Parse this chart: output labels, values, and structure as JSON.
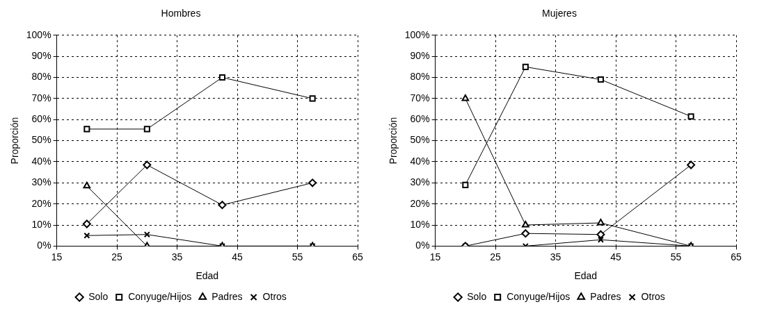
{
  "chart_data": [
    {
      "type": "line",
      "title": "Hombres",
      "xlabel": "Edad",
      "ylabel": "Proporción",
      "xlim": [
        15,
        65
      ],
      "xticks": [
        15,
        25,
        35,
        45,
        55,
        65
      ],
      "ylim": [
        0,
        100
      ],
      "yticks": [
        {
          "value": 0,
          "label": "0%"
        },
        {
          "value": 10,
          "label": "10%"
        },
        {
          "value": 20,
          "label": "20%"
        },
        {
          "value": 30,
          "label": "30%"
        },
        {
          "value": 40,
          "label": "40%"
        },
        {
          "value": 50,
          "label": "50%"
        },
        {
          "value": 60,
          "label": "60%"
        },
        {
          "value": 70,
          "label": "70%"
        },
        {
          "value": 80,
          "label": "80%"
        },
        {
          "value": 90,
          "label": "90%"
        },
        {
          "value": 100,
          "label": "100%"
        }
      ],
      "grid": true,
      "legend": "bottom",
      "series": [
        {
          "name": "Solo",
          "color": "#000000",
          "marker": "diamond",
          "x": [
            20,
            30,
            42.5,
            57.5
          ],
          "values": [
            10.5,
            38.5,
            19.5,
            30
          ]
        },
        {
          "name": "Conyuge/Hijos",
          "color": "#000000",
          "marker": "square",
          "x": [
            20,
            30,
            42.5,
            57.5
          ],
          "values": [
            55.5,
            55.5,
            80,
            70
          ]
        },
        {
          "name": "Padres",
          "color": "#000000",
          "marker": "triangle",
          "x": [
            20,
            30,
            42.5,
            57.5
          ],
          "values": [
            28.5,
            0,
            0,
            0
          ]
        },
        {
          "name": "Otros",
          "color": "#000000",
          "marker": "cross",
          "x": [
            20,
            30,
            42.5,
            57.5
          ],
          "values": [
            5,
            5.5,
            0,
            0
          ]
        }
      ]
    },
    {
      "type": "line",
      "title": "Mujeres",
      "xlabel": "Edad",
      "ylabel": "Proporción",
      "xlim": [
        15,
        65
      ],
      "xticks": [
        15,
        25,
        35,
        45,
        55,
        65
      ],
      "ylim": [
        0,
        100
      ],
      "yticks": [
        {
          "value": 0,
          "label": "0%"
        },
        {
          "value": 10,
          "label": "10%"
        },
        {
          "value": 20,
          "label": "20%"
        },
        {
          "value": 30,
          "label": "30%"
        },
        {
          "value": 40,
          "label": "40%"
        },
        {
          "value": 50,
          "label": "50%"
        },
        {
          "value": 60,
          "label": "60%"
        },
        {
          "value": 70,
          "label": "70%"
        },
        {
          "value": 80,
          "label": "80%"
        },
        {
          "value": 90,
          "label": "90%"
        },
        {
          "value": 100,
          "label": "100%"
        }
      ],
      "grid": true,
      "legend": "bottom",
      "series": [
        {
          "name": "Solo",
          "color": "#000000",
          "marker": "diamond",
          "x": [
            20,
            30,
            42.5,
            57.5
          ],
          "values": [
            0,
            6,
            5.5,
            38.5
          ]
        },
        {
          "name": "Conyuge/Hijos",
          "color": "#000000",
          "marker": "square",
          "x": [
            20,
            30,
            42.5,
            57.5
          ],
          "values": [
            29,
            85,
            79,
            61.5
          ]
        },
        {
          "name": "Padres",
          "color": "#000000",
          "marker": "triangle",
          "x": [
            20,
            30,
            42.5,
            57.5
          ],
          "values": [
            70,
            10,
            11,
            0
          ]
        },
        {
          "name": "Otros",
          "color": "#000000",
          "marker": "cross",
          "x": [
            20,
            30,
            42.5,
            57.5
          ],
          "values": [
            0,
            0,
            3,
            0
          ]
        }
      ]
    }
  ]
}
